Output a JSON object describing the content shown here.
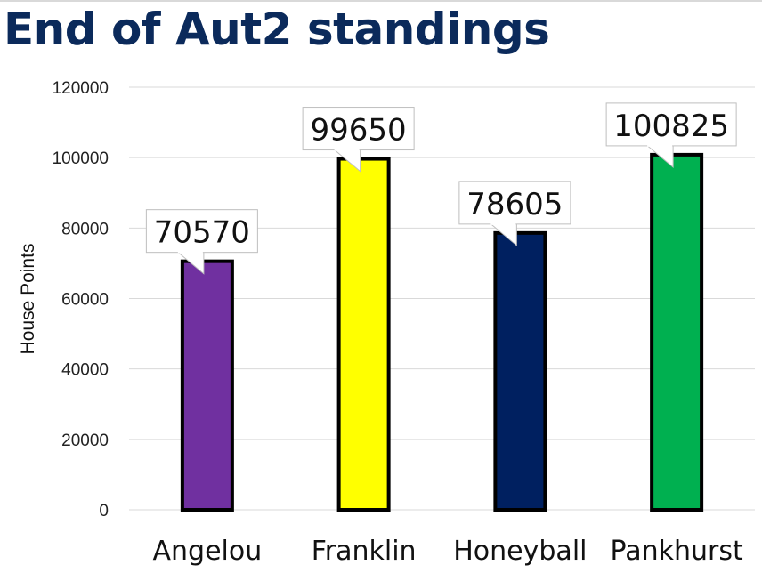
{
  "chart_data": {
    "type": "bar",
    "title": "End of Aut2 standings",
    "xlabel": "",
    "ylabel": "House Points",
    "categories": [
      "Angelou",
      "Franklin",
      "Honeyball",
      "Pankhurst"
    ],
    "values": [
      70570,
      99650,
      78605,
      100825
    ],
    "data_labels": [
      "70570",
      "99650",
      "78605",
      "100825"
    ],
    "colors": [
      "#7030a0",
      "#ffff00",
      "#002060",
      "#00b050"
    ],
    "bar_outline": "#000000",
    "ylim": [
      0,
      120000
    ],
    "yticks": [
      0,
      20000,
      40000,
      60000,
      80000,
      100000,
      120000
    ],
    "ytick_labels": [
      "0",
      "20000",
      "40000",
      "60000",
      "80000",
      "100000",
      "120000"
    ],
    "grid": true,
    "legend": "none"
  }
}
